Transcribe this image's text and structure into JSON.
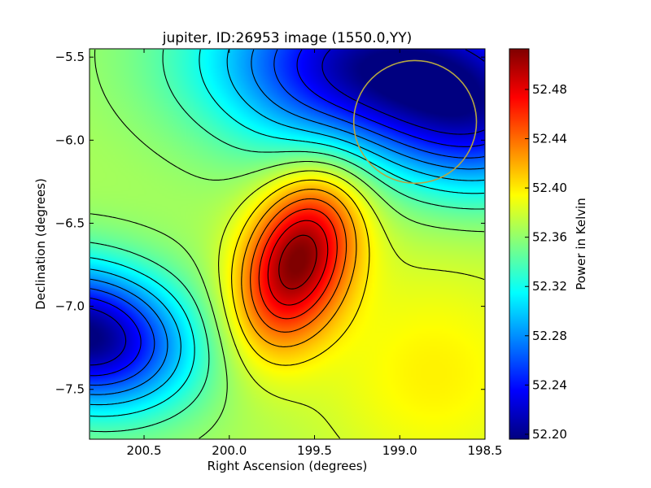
{
  "chart_data": {
    "type": "heatmap",
    "title": "jupiter, ID:26953 image (1550.0,YY)",
    "xlabel": "Right Ascension (degrees)",
    "ylabel": "Declination (degrees)",
    "xlim": [
      200.82,
      198.5
    ],
    "ylim": [
      -7.8,
      -5.45
    ],
    "xticks": [
      200.5,
      200.0,
      199.5,
      199.0,
      198.5
    ],
    "xtick_labels": [
      "200.5",
      "200.0",
      "199.5",
      "199.0",
      "198.5"
    ],
    "yticks": [
      -5.5,
      -6.0,
      -6.5,
      -7.0,
      -7.5
    ],
    "ytick_labels": [
      "−5.5",
      "−6.0",
      "−6.5",
      "−7.0",
      "−7.5"
    ],
    "colorbar": {
      "label": "Power in Kelvin",
      "range": [
        52.196,
        52.513
      ],
      "ticks": [
        52.2,
        52.24,
        52.28,
        52.32,
        52.36,
        52.4,
        52.44,
        52.48
      ],
      "tick_labels": [
        "52.20",
        "52.24",
        "52.28",
        "52.32",
        "52.36",
        "52.40",
        "52.44",
        "52.48"
      ]
    },
    "features": [
      {
        "kind": "peak",
        "ra": 199.6,
        "dec": -6.72,
        "value": 52.51
      },
      {
        "kind": "minimum",
        "ra": 200.82,
        "dec": -7.15,
        "value": 52.2
      },
      {
        "kind": "minimum",
        "ra": 199.0,
        "dec": -5.55,
        "value": 52.2
      }
    ],
    "overlay_circle": {
      "ra": 198.91,
      "dec": -5.89,
      "radius_deg": 0.36,
      "color": "#b5a642"
    },
    "colormap": "jet",
    "contours": true
  }
}
